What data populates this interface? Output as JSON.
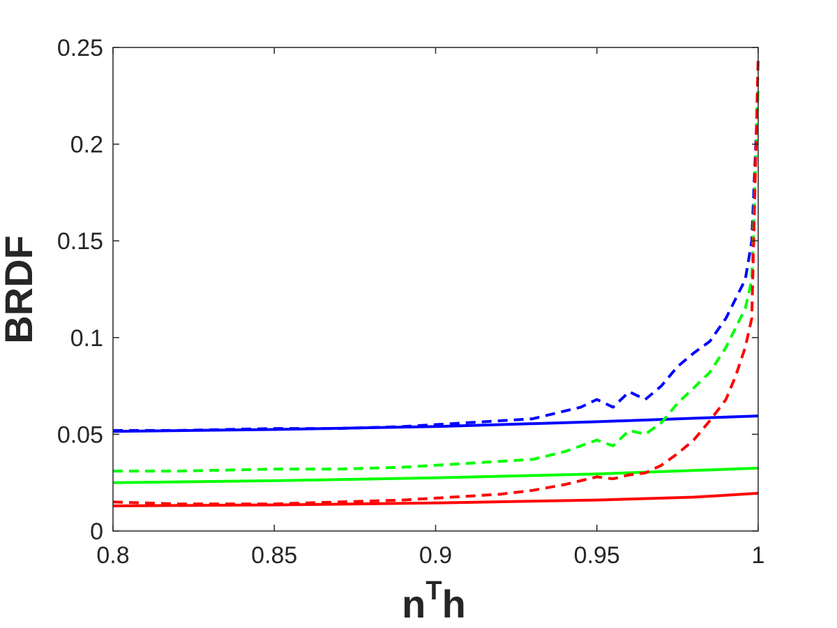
{
  "chart_data": {
    "type": "line",
    "title": "",
    "xlabel": {
      "base": "n",
      "sup": "T",
      "tail": "h"
    },
    "ylabel": "BRDF",
    "xlim": [
      0.8,
      1.0
    ],
    "ylim": [
      0,
      0.25
    ],
    "xticks": [
      0.8,
      0.85,
      0.9,
      0.95,
      1.0
    ],
    "xtick_labels": [
      "0.8",
      "0.85",
      "0.9",
      "0.95",
      "1"
    ],
    "yticks": [
      0,
      0.05,
      0.1,
      0.15,
      0.2,
      0.25
    ],
    "ytick_labels": [
      "0",
      "0.05",
      "0.1",
      "0.15",
      "0.2",
      "0.25"
    ],
    "grid": false,
    "legend": "none",
    "series": [
      {
        "color": "#0000ff",
        "style": "solid",
        "x": [
          0.8,
          0.85,
          0.9,
          0.95,
          1.0
        ],
        "y": [
          0.0515,
          0.0525,
          0.054,
          0.0565,
          0.0595
        ]
      },
      {
        "color": "#00ff00",
        "style": "solid",
        "x": [
          0.8,
          0.85,
          0.9,
          0.95,
          1.0
        ],
        "y": [
          0.025,
          0.026,
          0.0275,
          0.0295,
          0.0325
        ]
      },
      {
        "color": "#ff0000",
        "style": "solid",
        "x": [
          0.8,
          0.85,
          0.9,
          0.95,
          0.98,
          1.0
        ],
        "y": [
          0.013,
          0.0135,
          0.0145,
          0.016,
          0.0175,
          0.0195
        ]
      },
      {
        "color": "#0000ff",
        "style": "dashed",
        "x": [
          0.8,
          0.82,
          0.85,
          0.87,
          0.89,
          0.9,
          0.91,
          0.92,
          0.93,
          0.94,
          0.945,
          0.95,
          0.955,
          0.96,
          0.965,
          0.97,
          0.975,
          0.98,
          0.985,
          0.99,
          0.993,
          0.996,
          0.998,
          1.0
        ],
        "y": [
          0.052,
          0.052,
          0.053,
          0.053,
          0.054,
          0.055,
          0.056,
          0.057,
          0.058,
          0.062,
          0.064,
          0.068,
          0.064,
          0.072,
          0.068,
          0.075,
          0.085,
          0.092,
          0.098,
          0.11,
          0.12,
          0.13,
          0.15,
          0.23
        ]
      },
      {
        "color": "#00ff00",
        "style": "dashed",
        "x": [
          0.8,
          0.82,
          0.85,
          0.87,
          0.89,
          0.9,
          0.91,
          0.92,
          0.93,
          0.94,
          0.945,
          0.95,
          0.955,
          0.96,
          0.965,
          0.97,
          0.975,
          0.98,
          0.985,
          0.99,
          0.993,
          0.996,
          0.998,
          1.0
        ],
        "y": [
          0.031,
          0.031,
          0.032,
          0.032,
          0.033,
          0.034,
          0.035,
          0.036,
          0.037,
          0.041,
          0.044,
          0.047,
          0.044,
          0.052,
          0.05,
          0.056,
          0.066,
          0.074,
          0.082,
          0.095,
          0.105,
          0.115,
          0.13,
          0.23
        ]
      },
      {
        "color": "#ff0000",
        "style": "dashed",
        "x": [
          0.8,
          0.82,
          0.85,
          0.87,
          0.89,
          0.9,
          0.91,
          0.92,
          0.93,
          0.94,
          0.945,
          0.95,
          0.955,
          0.96,
          0.965,
          0.97,
          0.975,
          0.98,
          0.985,
          0.99,
          0.993,
          0.996,
          0.998,
          1.0
        ],
        "y": [
          0.015,
          0.014,
          0.014,
          0.015,
          0.016,
          0.017,
          0.018,
          0.019,
          0.021,
          0.024,
          0.026,
          0.028,
          0.027,
          0.029,
          0.03,
          0.034,
          0.04,
          0.047,
          0.057,
          0.068,
          0.08,
          0.095,
          0.11,
          0.245
        ]
      }
    ]
  }
}
